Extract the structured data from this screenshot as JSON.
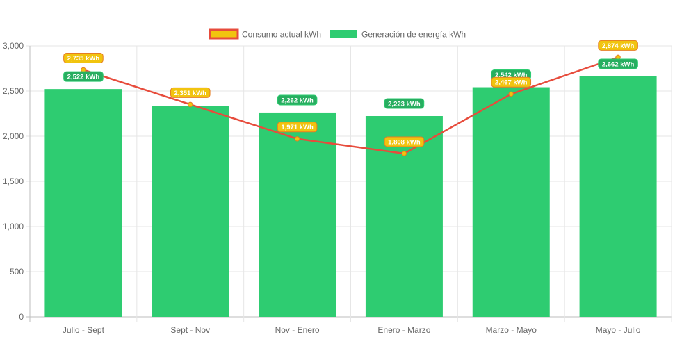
{
  "chart_data": {
    "type": "bar",
    "categories": [
      "Julio - Sept",
      "Sept - Nov",
      "Nov - Enero",
      "Enero - Marzo",
      "Marzo - Mayo",
      "Mayo - Julio"
    ],
    "series": [
      {
        "name": "Consumo actual kWh",
        "chart_type": "line",
        "values": [
          2735,
          2351,
          1971,
          1808,
          2467,
          2874
        ],
        "labels": [
          "2,735 kWh",
          "2,351 kWh",
          "1,971 kWh",
          "1,808 kWh",
          "2,467 kWh",
          "2,874 kWh"
        ],
        "color": "#e74c3c",
        "badge_color": "#f1c40f"
      },
      {
        "name": "Generación de energía kWh",
        "chart_type": "bar",
        "values": [
          2522,
          2332,
          2262,
          2223,
          2542,
          2662
        ],
        "labels": [
          "2,522 kWh",
          "",
          "2,262 kWh",
          "2,223 kWh",
          "2,542 kWh",
          "2,662 kWh"
        ],
        "color": "#2ecc71"
      }
    ],
    "ylim": [
      0,
      3000
    ],
    "yticks": [
      0,
      500,
      1000,
      1500,
      2000,
      2500,
      3000
    ],
    "ytick_labels": [
      "0",
      "500",
      "1,000",
      "1,500",
      "2,000",
      "2,500",
      "3,000"
    ],
    "grid": true,
    "legend_position": "top"
  }
}
